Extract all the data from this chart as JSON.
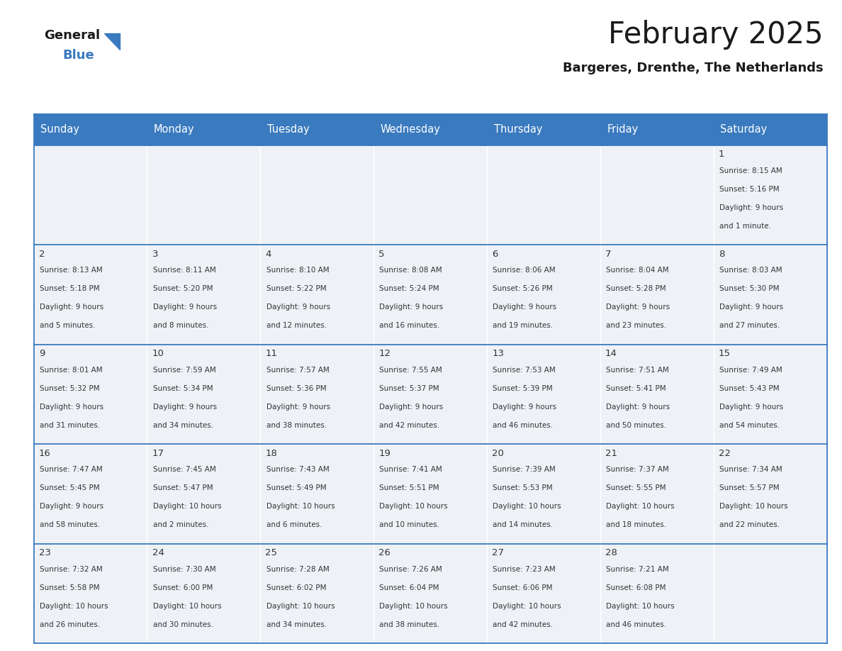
{
  "title": "February 2025",
  "subtitle": "Bargeres, Drenthe, The Netherlands",
  "header_color": "#3a7abf",
  "header_text_color": "#ffffff",
  "cell_bg_color": "#eef2f7",
  "border_color": "#3a7abf",
  "line_color": "#3a7abf",
  "text_color": "#333333",
  "days_of_week": [
    "Sunday",
    "Monday",
    "Tuesday",
    "Wednesday",
    "Thursday",
    "Friday",
    "Saturday"
  ],
  "calendar_data": [
    [
      null,
      null,
      null,
      null,
      null,
      null,
      {
        "day": "1",
        "sunrise": "8:15 AM",
        "sunset": "5:16 PM",
        "daylight_line1": "Daylight: 9 hours",
        "daylight_line2": "and 1 minute."
      }
    ],
    [
      {
        "day": "2",
        "sunrise": "8:13 AM",
        "sunset": "5:18 PM",
        "daylight_line1": "Daylight: 9 hours",
        "daylight_line2": "and 5 minutes."
      },
      {
        "day": "3",
        "sunrise": "8:11 AM",
        "sunset": "5:20 PM",
        "daylight_line1": "Daylight: 9 hours",
        "daylight_line2": "and 8 minutes."
      },
      {
        "day": "4",
        "sunrise": "8:10 AM",
        "sunset": "5:22 PM",
        "daylight_line1": "Daylight: 9 hours",
        "daylight_line2": "and 12 minutes."
      },
      {
        "day": "5",
        "sunrise": "8:08 AM",
        "sunset": "5:24 PM",
        "daylight_line1": "Daylight: 9 hours",
        "daylight_line2": "and 16 minutes."
      },
      {
        "day": "6",
        "sunrise": "8:06 AM",
        "sunset": "5:26 PM",
        "daylight_line1": "Daylight: 9 hours",
        "daylight_line2": "and 19 minutes."
      },
      {
        "day": "7",
        "sunrise": "8:04 AM",
        "sunset": "5:28 PM",
        "daylight_line1": "Daylight: 9 hours",
        "daylight_line2": "and 23 minutes."
      },
      {
        "day": "8",
        "sunrise": "8:03 AM",
        "sunset": "5:30 PM",
        "daylight_line1": "Daylight: 9 hours",
        "daylight_line2": "and 27 minutes."
      }
    ],
    [
      {
        "day": "9",
        "sunrise": "8:01 AM",
        "sunset": "5:32 PM",
        "daylight_line1": "Daylight: 9 hours",
        "daylight_line2": "and 31 minutes."
      },
      {
        "day": "10",
        "sunrise": "7:59 AM",
        "sunset": "5:34 PM",
        "daylight_line1": "Daylight: 9 hours",
        "daylight_line2": "and 34 minutes."
      },
      {
        "day": "11",
        "sunrise": "7:57 AM",
        "sunset": "5:36 PM",
        "daylight_line1": "Daylight: 9 hours",
        "daylight_line2": "and 38 minutes."
      },
      {
        "day": "12",
        "sunrise": "7:55 AM",
        "sunset": "5:37 PM",
        "daylight_line1": "Daylight: 9 hours",
        "daylight_line2": "and 42 minutes."
      },
      {
        "day": "13",
        "sunrise": "7:53 AM",
        "sunset": "5:39 PM",
        "daylight_line1": "Daylight: 9 hours",
        "daylight_line2": "and 46 minutes."
      },
      {
        "day": "14",
        "sunrise": "7:51 AM",
        "sunset": "5:41 PM",
        "daylight_line1": "Daylight: 9 hours",
        "daylight_line2": "and 50 minutes."
      },
      {
        "day": "15",
        "sunrise": "7:49 AM",
        "sunset": "5:43 PM",
        "daylight_line1": "Daylight: 9 hours",
        "daylight_line2": "and 54 minutes."
      }
    ],
    [
      {
        "day": "16",
        "sunrise": "7:47 AM",
        "sunset": "5:45 PM",
        "daylight_line1": "Daylight: 9 hours",
        "daylight_line2": "and 58 minutes."
      },
      {
        "day": "17",
        "sunrise": "7:45 AM",
        "sunset": "5:47 PM",
        "daylight_line1": "Daylight: 10 hours",
        "daylight_line2": "and 2 minutes."
      },
      {
        "day": "18",
        "sunrise": "7:43 AM",
        "sunset": "5:49 PM",
        "daylight_line1": "Daylight: 10 hours",
        "daylight_line2": "and 6 minutes."
      },
      {
        "day": "19",
        "sunrise": "7:41 AM",
        "sunset": "5:51 PM",
        "daylight_line1": "Daylight: 10 hours",
        "daylight_line2": "and 10 minutes."
      },
      {
        "day": "20",
        "sunrise": "7:39 AM",
        "sunset": "5:53 PM",
        "daylight_line1": "Daylight: 10 hours",
        "daylight_line2": "and 14 minutes."
      },
      {
        "day": "21",
        "sunrise": "7:37 AM",
        "sunset": "5:55 PM",
        "daylight_line1": "Daylight: 10 hours",
        "daylight_line2": "and 18 minutes."
      },
      {
        "day": "22",
        "sunrise": "7:34 AM",
        "sunset": "5:57 PM",
        "daylight_line1": "Daylight: 10 hours",
        "daylight_line2": "and 22 minutes."
      }
    ],
    [
      {
        "day": "23",
        "sunrise": "7:32 AM",
        "sunset": "5:58 PM",
        "daylight_line1": "Daylight: 10 hours",
        "daylight_line2": "and 26 minutes."
      },
      {
        "day": "24",
        "sunrise": "7:30 AM",
        "sunset": "6:00 PM",
        "daylight_line1": "Daylight: 10 hours",
        "daylight_line2": "and 30 minutes."
      },
      {
        "day": "25",
        "sunrise": "7:28 AM",
        "sunset": "6:02 PM",
        "daylight_line1": "Daylight: 10 hours",
        "daylight_line2": "and 34 minutes."
      },
      {
        "day": "26",
        "sunrise": "7:26 AM",
        "sunset": "6:04 PM",
        "daylight_line1": "Daylight: 10 hours",
        "daylight_line2": "and 38 minutes."
      },
      {
        "day": "27",
        "sunrise": "7:23 AM",
        "sunset": "6:06 PM",
        "daylight_line1": "Daylight: 10 hours",
        "daylight_line2": "and 42 minutes."
      },
      {
        "day": "28",
        "sunrise": "7:21 AM",
        "sunset": "6:08 PM",
        "daylight_line1": "Daylight: 10 hours",
        "daylight_line2": "and 46 minutes."
      },
      null
    ]
  ]
}
